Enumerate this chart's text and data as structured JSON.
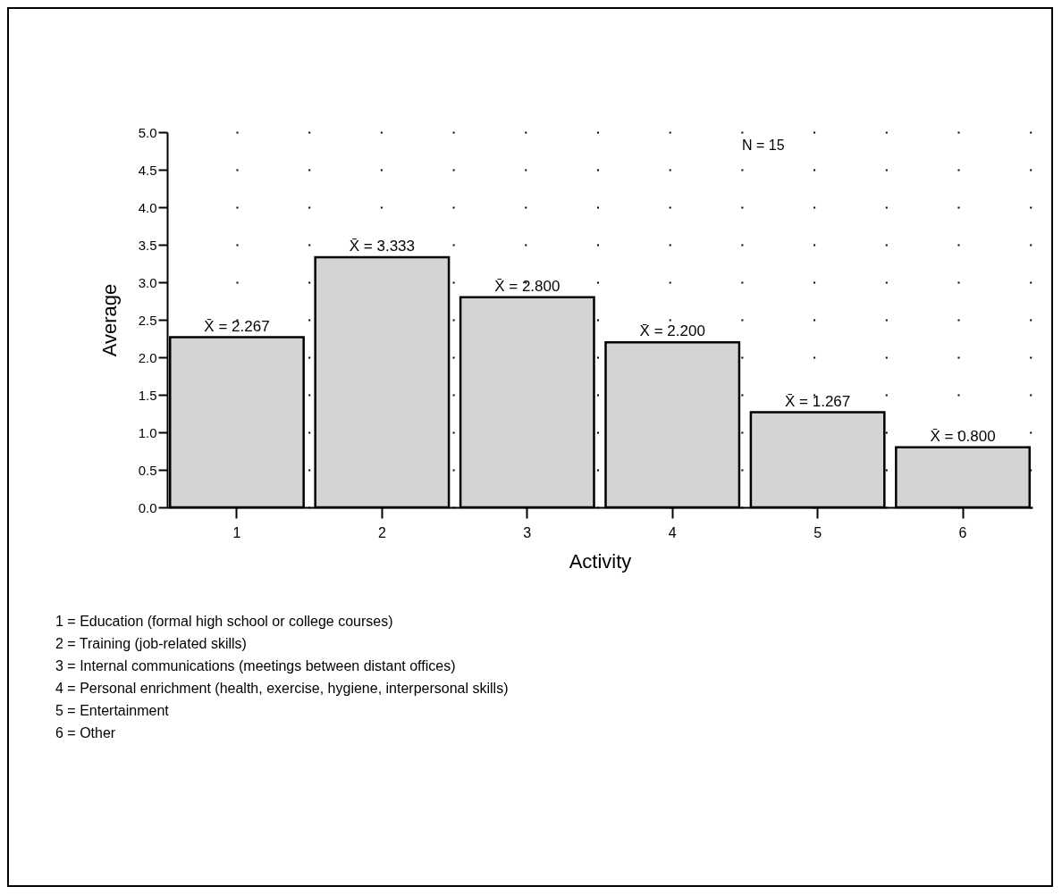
{
  "chart_data": {
    "type": "bar",
    "xlabel": "Activity",
    "ylabel": "Average",
    "categories": [
      "1",
      "2",
      "3",
      "4",
      "5",
      "6"
    ],
    "values": [
      2.267,
      3.333,
      2.8,
      2.2,
      1.267,
      0.8
    ],
    "value_labels": [
      "X̄ = 2.267",
      "X̄ = 3.333",
      "X̄ = 2.800",
      "X̄ = 2.200",
      "X̄ = 1.267",
      "X̄ = 0.800"
    ],
    "color": "#d4d4d4",
    "ylim": [
      0,
      5
    ],
    "yticks": [
      {
        "value": 0,
        "label": "0.0"
      },
      {
        "value": 0.5,
        "label": "0.5"
      },
      {
        "value": 1,
        "label": "1.0"
      },
      {
        "value": 1.5,
        "label": "1.5"
      },
      {
        "value": 2,
        "label": "2.0"
      },
      {
        "value": 2.5,
        "label": "2.5"
      },
      {
        "value": 3,
        "label": "3.0"
      },
      {
        "value": 3.5,
        "label": "3.5"
      },
      {
        "value": 4,
        "label": "4.0"
      },
      {
        "value": 4.5,
        "label": "4.5"
      },
      {
        "value": 5,
        "label": "5.0"
      }
    ],
    "grid": "y",
    "annotations": [
      "N = 15",
      "1 = Education (formal high school or college courses)",
      "2 = Training (job-related skills)",
      "3 = Internal communications (meetings between distant offices)",
      "4 = Personal enrichment (health, exercise, hygiene, interpersonal skills)",
      "5 = Entertainment",
      "6 = Other"
    ]
  }
}
